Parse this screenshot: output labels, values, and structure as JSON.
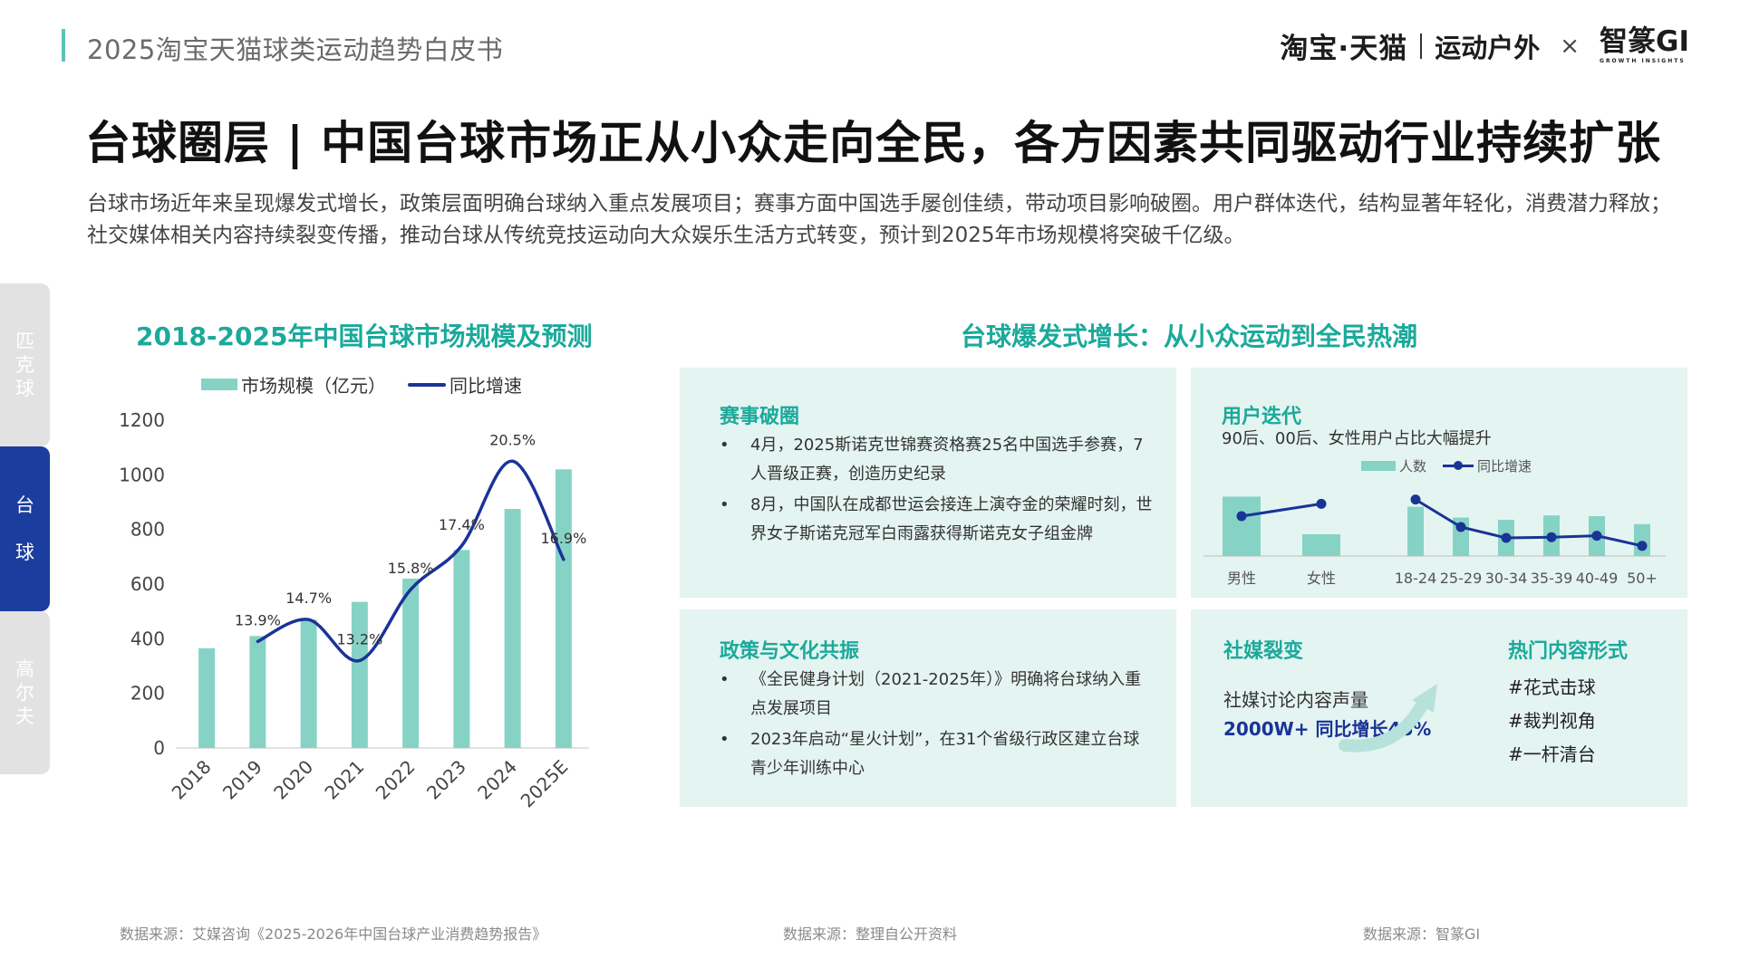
{
  "header": {
    "report_title": "2025淘宝天猫球类运动趋势白皮书",
    "brand_primary": "淘宝·天猫",
    "brand_secondary": "运动户外",
    "brand_cross": "×",
    "brand_partner": "智篆GI",
    "brand_partner_sub": "GROWTH INSIGHTS"
  },
  "main_title": "台球圈层 | 中国台球市场正从小众走向全民，各方因素共同驱动行业持续扩张",
  "summary": "台球市场近年来呈现爆发式增长，政策层面明确台球纳入重点发展项目；赛事方面中国选手屡创佳绩，带动项目影响破圈。用户群体迭代，结构显著年轻化，消费潜力释放；社交媒体相关内容持续裂变传播，推动台球从传统竞技运动向大众娱乐生活方式转变，预计到2025年市场规模将突破千亿级。",
  "side_tabs": [
    {
      "label": [
        "匹",
        "克",
        "球"
      ],
      "active": false
    },
    {
      "label": [
        "台",
        "球"
      ],
      "active": true
    },
    {
      "label": [
        "高",
        "尔",
        "夫"
      ],
      "active": false
    }
  ],
  "left_chart": {
    "title": "2018-2025年中国台球市场规模及预测",
    "legend_bar": "市场规模（亿元）",
    "legend_line": "同比增速"
  },
  "right_section": {
    "title": "台球爆发式增长：从小众运动到全民热潮",
    "events": {
      "head": "赛事破圈",
      "bullets": [
        "4月，2025斯诺克世锦赛资格赛25名中国选手参赛，7人晋级正赛，创造历史纪录",
        "8月，中国队在成都世运会接连上演夺金的荣耀时刻，世界女子斯诺克冠军白雨露获得斯诺克女子组金牌"
      ]
    },
    "users": {
      "head": "用户迭代",
      "sub": "90后、00后、女性用户占比大幅提升",
      "legend_bar": "人数",
      "legend_line": "同比增速"
    },
    "policy": {
      "head": "政策与文化共振",
      "bullets": [
        "《全民健身计划（2021-2025年）》明确将台球纳入重点发展项目",
        "2023年启动“星火计划”，在31个省级行政区建立台球青少年训练中心"
      ]
    },
    "social": {
      "head": "社媒裂变",
      "label": "社媒讨论内容声量",
      "value": "2000W+  同比增长46%"
    },
    "hot": {
      "head": "热门内容形式",
      "items": [
        "#花式击球",
        "#裁判视角",
        "#一杆清台"
      ]
    }
  },
  "sources": [
    "数据来源：艾媒咨询《2025-2026年中国台球产业消费趋势报告》",
    "数据来源：整理自公开资料",
    "数据来源：智篆GI"
  ],
  "colors": {
    "accent_teal": "#1ba99b",
    "bar_teal": "#86d3c6",
    "line_navy": "#1a3397",
    "tab_active": "#1a3d9e"
  },
  "chart_data": [
    {
      "type": "bar",
      "title": "2018-2025年中国台球市场规模及预测",
      "categories": [
        "2018",
        "2019",
        "2020",
        "2021",
        "2022",
        "2023",
        "2024",
        "2025E"
      ],
      "series": [
        {
          "name": "市场规模（亿元）",
          "type": "bar",
          "values": [
            365,
            410,
            470,
            535,
            620,
            725,
            875,
            1020
          ]
        },
        {
          "name": "同比增速",
          "type": "line",
          "values": [
            null,
            13.9,
            14.7,
            13.2,
            15.8,
            17.4,
            20.5,
            16.9
          ],
          "labels": [
            "",
            "13.9%",
            "14.7%",
            "13.2%",
            "15.8%",
            "17.4%",
            "20.5%",
            "16.9%"
          ]
        }
      ],
      "yticks": [
        0,
        200,
        400,
        600,
        800,
        1000,
        1200
      ],
      "ylim": [
        0,
        1200
      ],
      "line_range": [
        10,
        22
      ],
      "legend": "top"
    },
    {
      "type": "bar",
      "title": "",
      "categories": [
        "男性",
        "女性",
        "18-24",
        "25-29",
        "30-34",
        "35-39",
        "40-49",
        "50+"
      ],
      "series": [
        {
          "name": "人数",
          "type": "bar",
          "values": [
            0.82,
            0.3,
            0.68,
            0.53,
            0.5,
            0.56,
            0.55,
            0.44
          ]
        },
        {
          "name": "同比增速",
          "type": "line",
          "values": [
            0.55,
            0.72,
            0.78,
            0.4,
            0.25,
            0.26,
            0.28,
            0.14
          ]
        }
      ],
      "legend": "top"
    }
  ]
}
